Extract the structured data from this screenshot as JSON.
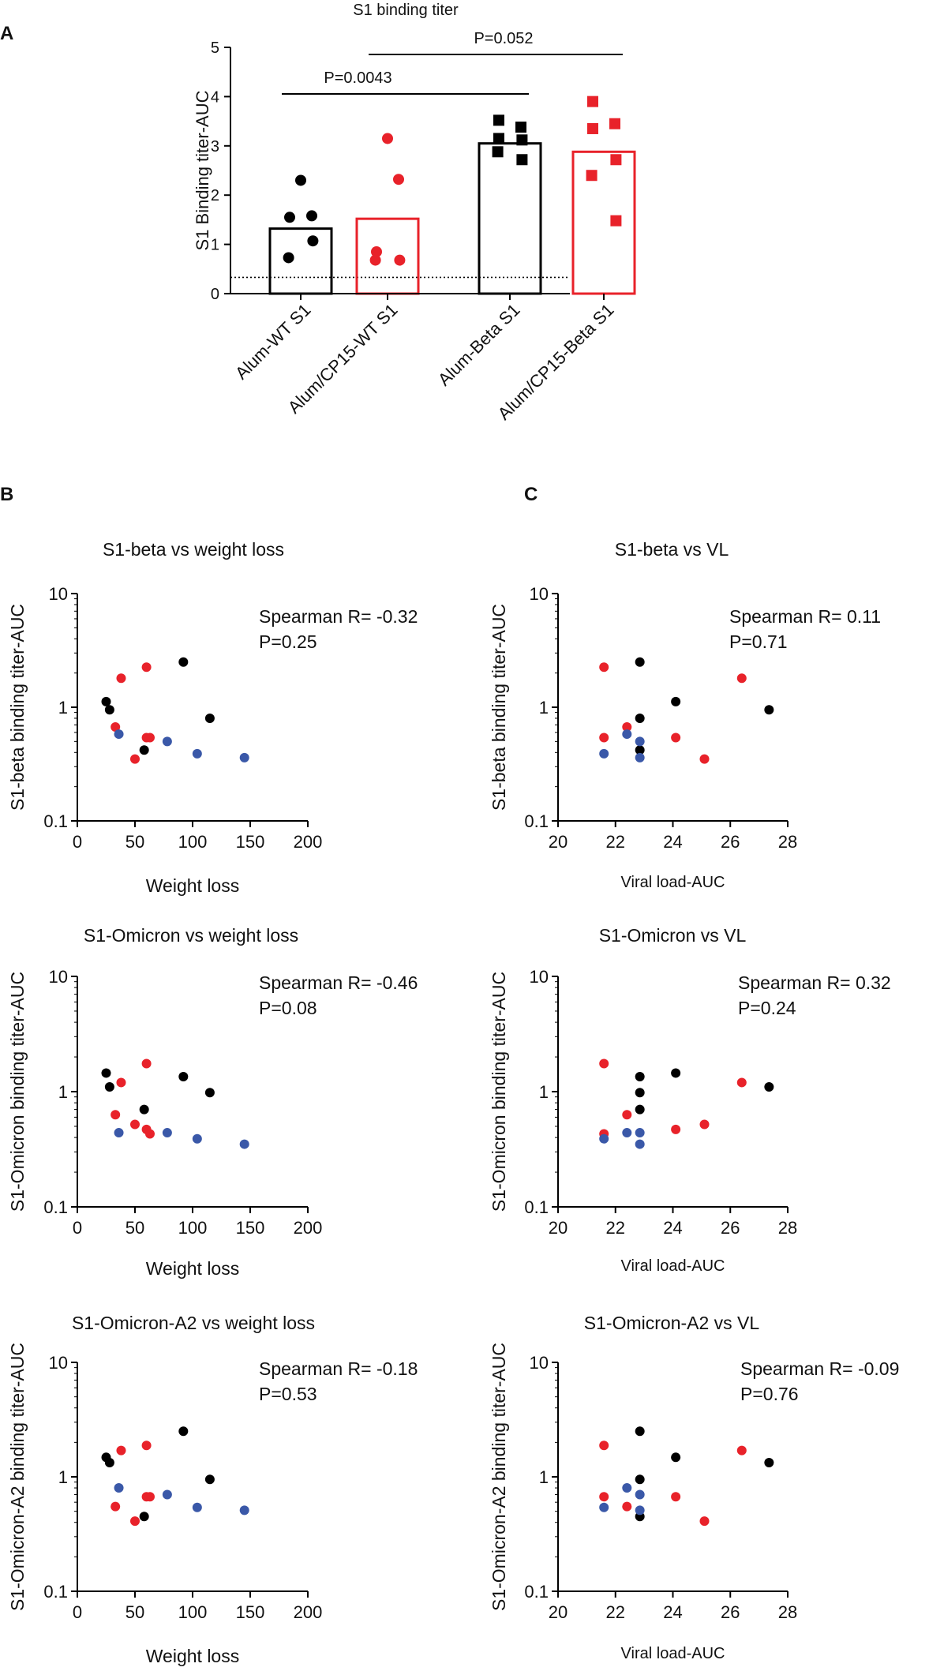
{
  "colors": {
    "black": "#000000",
    "red": "#e8222a",
    "blue": "#3a58a8"
  },
  "panel_labels": {
    "a": "A",
    "b": "B",
    "c": "C"
  },
  "chart_data": [
    {
      "id": "A",
      "type": "bar",
      "title": "S1 binding titer",
      "xlabel": "",
      "ylabel": "S1 Binding titer-AUC",
      "ylim": [
        0,
        5
      ],
      "yticks": [
        "0",
        "1",
        "2",
        "3",
        "4",
        "5"
      ],
      "dotted_baseline": 0.33,
      "categories": [
        "Alum-WT S1",
        "Alum/CP15-WT S1",
        "Alum-Beta S1",
        "Alum/CP15-Beta S1"
      ],
      "bars": [
        {
          "value": 1.32,
          "color": "black",
          "marker": "circle",
          "points": [
            2.3,
            1.58,
            1.55,
            1.07,
            0.73
          ]
        },
        {
          "value": 1.52,
          "color": "red",
          "marker": "circle",
          "points": [
            3.15,
            2.32,
            0.85,
            0.68,
            0.68
          ]
        },
        {
          "value": 3.05,
          "color": "black",
          "marker": "square",
          "points": [
            3.52,
            3.38,
            3.15,
            3.12,
            2.88,
            2.72
          ]
        },
        {
          "value": 2.88,
          "color": "red",
          "marker": "square",
          "points": [
            3.9,
            3.45,
            3.35,
            2.72,
            2.4,
            1.48
          ]
        }
      ],
      "significance": [
        {
          "from": 0,
          "to": 2,
          "label": "P=0.0043"
        },
        {
          "from": 1,
          "to": 3,
          "label": "P=0.052"
        }
      ]
    },
    {
      "id": "B1",
      "type": "scatter",
      "title": "S1-beta vs weight loss",
      "xlabel": "Weight loss",
      "ylabel": "S1-beta binding titer-AUC",
      "xlim": [
        0,
        200
      ],
      "xticks": [
        "0",
        "50",
        "100",
        "150",
        "200"
      ],
      "ylim": [
        0.1,
        10
      ],
      "yscale": "log",
      "yticks": [
        "0.1",
        "1",
        "10"
      ],
      "annotation": [
        "Spearman R= -0.32",
        "P=0.25"
      ],
      "points": [
        {
          "x": 25,
          "y": 1.12,
          "color": "black"
        },
        {
          "x": 28,
          "y": 0.95,
          "color": "black"
        },
        {
          "x": 58,
          "y": 0.42,
          "color": "black"
        },
        {
          "x": 92,
          "y": 2.5,
          "color": "black"
        },
        {
          "x": 115,
          "y": 0.8,
          "color": "black"
        },
        {
          "x": 33,
          "y": 0.67,
          "color": "red"
        },
        {
          "x": 38,
          "y": 1.8,
          "color": "red"
        },
        {
          "x": 50,
          "y": 0.35,
          "color": "red"
        },
        {
          "x": 60,
          "y": 2.25,
          "color": "red"
        },
        {
          "x": 60,
          "y": 0.54,
          "color": "red"
        },
        {
          "x": 63,
          "y": 0.54,
          "color": "red"
        },
        {
          "x": 36,
          "y": 0.58,
          "color": "blue"
        },
        {
          "x": 78,
          "y": 0.5,
          "color": "blue"
        },
        {
          "x": 104,
          "y": 0.39,
          "color": "blue"
        },
        {
          "x": 145,
          "y": 0.36,
          "color": "blue"
        }
      ]
    },
    {
      "id": "C1",
      "type": "scatter",
      "title": "S1-beta vs VL",
      "xlabel": "Viral load-AUC",
      "ylabel": "S1-beta binding titer-AUC",
      "xlim": [
        20,
        28
      ],
      "xticks": [
        "20",
        "22",
        "24",
        "26",
        "28"
      ],
      "ylim": [
        0.1,
        10
      ],
      "yscale": "log",
      "yticks": [
        "0.1",
        "1",
        "10"
      ],
      "annotation": [
        "Spearman R= 0.11",
        "P=0.71"
      ],
      "points": [
        {
          "x": 22.85,
          "y": 2.5,
          "color": "black"
        },
        {
          "x": 22.85,
          "y": 0.8,
          "color": "black"
        },
        {
          "x": 22.85,
          "y": 0.42,
          "color": "black"
        },
        {
          "x": 24.1,
          "y": 1.12,
          "color": "black"
        },
        {
          "x": 27.35,
          "y": 0.95,
          "color": "black"
        },
        {
          "x": 21.6,
          "y": 2.25,
          "color": "red"
        },
        {
          "x": 21.6,
          "y": 0.54,
          "color": "red"
        },
        {
          "x": 22.4,
          "y": 0.67,
          "color": "red"
        },
        {
          "x": 24.1,
          "y": 0.54,
          "color": "red"
        },
        {
          "x": 25.1,
          "y": 0.35,
          "color": "red"
        },
        {
          "x": 26.4,
          "y": 1.8,
          "color": "red"
        },
        {
          "x": 21.6,
          "y": 0.39,
          "color": "blue"
        },
        {
          "x": 22.4,
          "y": 0.58,
          "color": "blue"
        },
        {
          "x": 22.85,
          "y": 0.5,
          "color": "blue"
        },
        {
          "x": 22.85,
          "y": 0.36,
          "color": "blue"
        }
      ]
    },
    {
      "id": "B2",
      "type": "scatter",
      "title": "S1-Omicron vs weight loss",
      "xlabel": "Weight loss",
      "ylabel": "S1-Omicron binding titer-AUC",
      "xlim": [
        0,
        200
      ],
      "xticks": [
        "0",
        "50",
        "100",
        "150",
        "200"
      ],
      "ylim": [
        0.1,
        10
      ],
      "yscale": "log",
      "yticks": [
        "0.1",
        "1",
        "10"
      ],
      "annotation": [
        "Spearman R= -0.46",
        "P=0.08"
      ],
      "points": [
        {
          "x": 25,
          "y": 1.45,
          "color": "black"
        },
        {
          "x": 28,
          "y": 1.1,
          "color": "black"
        },
        {
          "x": 58,
          "y": 0.7,
          "color": "black"
        },
        {
          "x": 92,
          "y": 1.35,
          "color": "black"
        },
        {
          "x": 115,
          "y": 0.98,
          "color": "black"
        },
        {
          "x": 33,
          "y": 0.63,
          "color": "red"
        },
        {
          "x": 38,
          "y": 1.2,
          "color": "red"
        },
        {
          "x": 50,
          "y": 0.52,
          "color": "red"
        },
        {
          "x": 60,
          "y": 1.75,
          "color": "red"
        },
        {
          "x": 60,
          "y": 0.47,
          "color": "red"
        },
        {
          "x": 63,
          "y": 0.43,
          "color": "red"
        },
        {
          "x": 36,
          "y": 0.44,
          "color": "blue"
        },
        {
          "x": 78,
          "y": 0.44,
          "color": "blue"
        },
        {
          "x": 104,
          "y": 0.39,
          "color": "blue"
        },
        {
          "x": 145,
          "y": 0.35,
          "color": "blue"
        }
      ]
    },
    {
      "id": "C2",
      "type": "scatter",
      "title": "S1-Omicron vs VL",
      "xlabel": "Viral load-AUC",
      "ylabel": "S1-Omicron binding titer-AUC",
      "xlim": [
        20,
        28
      ],
      "xticks": [
        "20",
        "22",
        "24",
        "26",
        "28"
      ],
      "ylim": [
        0.1,
        10
      ],
      "yscale": "log",
      "yticks": [
        "0.1",
        "1",
        "10"
      ],
      "annotation": [
        "Spearman R= 0.32",
        "P=0.24"
      ],
      "points": [
        {
          "x": 22.85,
          "y": 1.35,
          "color": "black"
        },
        {
          "x": 22.85,
          "y": 0.98,
          "color": "black"
        },
        {
          "x": 22.85,
          "y": 0.7,
          "color": "black"
        },
        {
          "x": 24.1,
          "y": 1.45,
          "color": "black"
        },
        {
          "x": 27.35,
          "y": 1.1,
          "color": "black"
        },
        {
          "x": 21.6,
          "y": 1.75,
          "color": "red"
        },
        {
          "x": 21.6,
          "y": 0.43,
          "color": "red"
        },
        {
          "x": 22.4,
          "y": 0.63,
          "color": "red"
        },
        {
          "x": 24.1,
          "y": 0.47,
          "color": "red"
        },
        {
          "x": 25.1,
          "y": 0.52,
          "color": "red"
        },
        {
          "x": 26.4,
          "y": 1.2,
          "color": "red"
        },
        {
          "x": 21.6,
          "y": 0.39,
          "color": "blue"
        },
        {
          "x": 22.4,
          "y": 0.44,
          "color": "blue"
        },
        {
          "x": 22.85,
          "y": 0.44,
          "color": "blue"
        },
        {
          "x": 22.85,
          "y": 0.35,
          "color": "blue"
        }
      ]
    },
    {
      "id": "B3",
      "type": "scatter",
      "title": "S1-Omicron-A2 vs weight loss",
      "xlabel": "Weight loss",
      "ylabel": "S1-Omicron-A2 binding titer-AUC",
      "xlim": [
        0,
        200
      ],
      "xticks": [
        "0",
        "50",
        "100",
        "150",
        "200"
      ],
      "ylim": [
        0.1,
        10
      ],
      "yscale": "log",
      "yticks": [
        "0.1",
        "1",
        "10"
      ],
      "annotation": [
        "Spearman R= -0.18",
        "P=0.53"
      ],
      "points": [
        {
          "x": 25,
          "y": 1.48,
          "color": "black"
        },
        {
          "x": 28,
          "y": 1.33,
          "color": "black"
        },
        {
          "x": 58,
          "y": 0.45,
          "color": "black"
        },
        {
          "x": 92,
          "y": 2.5,
          "color": "black"
        },
        {
          "x": 115,
          "y": 0.95,
          "color": "black"
        },
        {
          "x": 33,
          "y": 0.55,
          "color": "red"
        },
        {
          "x": 38,
          "y": 1.7,
          "color": "red"
        },
        {
          "x": 50,
          "y": 0.41,
          "color": "red"
        },
        {
          "x": 60,
          "y": 1.88,
          "color": "red"
        },
        {
          "x": 60,
          "y": 0.67,
          "color": "red"
        },
        {
          "x": 63,
          "y": 0.67,
          "color": "red"
        },
        {
          "x": 36,
          "y": 0.8,
          "color": "blue"
        },
        {
          "x": 78,
          "y": 0.7,
          "color": "blue"
        },
        {
          "x": 104,
          "y": 0.54,
          "color": "blue"
        },
        {
          "x": 145,
          "y": 0.51,
          "color": "blue"
        }
      ]
    },
    {
      "id": "C3",
      "type": "scatter",
      "title": "S1-Omicron-A2 vs VL",
      "xlabel": "Viral load-AUC",
      "ylabel": "S1-Omicron-A2 binding titer-AUC",
      "xlim": [
        20,
        28
      ],
      "xticks": [
        "20",
        "22",
        "24",
        "26",
        "28"
      ],
      "ylim": [
        0.1,
        10
      ],
      "yscale": "log",
      "yticks": [
        "0.1",
        "1",
        "10"
      ],
      "annotation": [
        "Spearman R= -0.09",
        "P=0.76"
      ],
      "points": [
        {
          "x": 22.85,
          "y": 2.5,
          "color": "black"
        },
        {
          "x": 22.85,
          "y": 0.95,
          "color": "black"
        },
        {
          "x": 22.85,
          "y": 0.45,
          "color": "black"
        },
        {
          "x": 24.1,
          "y": 1.48,
          "color": "black"
        },
        {
          "x": 27.35,
          "y": 1.33,
          "color": "black"
        },
        {
          "x": 21.6,
          "y": 1.88,
          "color": "red"
        },
        {
          "x": 21.6,
          "y": 0.67,
          "color": "red"
        },
        {
          "x": 22.4,
          "y": 0.55,
          "color": "red"
        },
        {
          "x": 24.1,
          "y": 0.67,
          "color": "red"
        },
        {
          "x": 25.1,
          "y": 0.41,
          "color": "red"
        },
        {
          "x": 26.4,
          "y": 1.7,
          "color": "red"
        },
        {
          "x": 21.6,
          "y": 0.54,
          "color": "blue"
        },
        {
          "x": 22.4,
          "y": 0.8,
          "color": "blue"
        },
        {
          "x": 22.85,
          "y": 0.7,
          "color": "blue"
        },
        {
          "x": 22.85,
          "y": 0.51,
          "color": "blue"
        }
      ]
    }
  ]
}
